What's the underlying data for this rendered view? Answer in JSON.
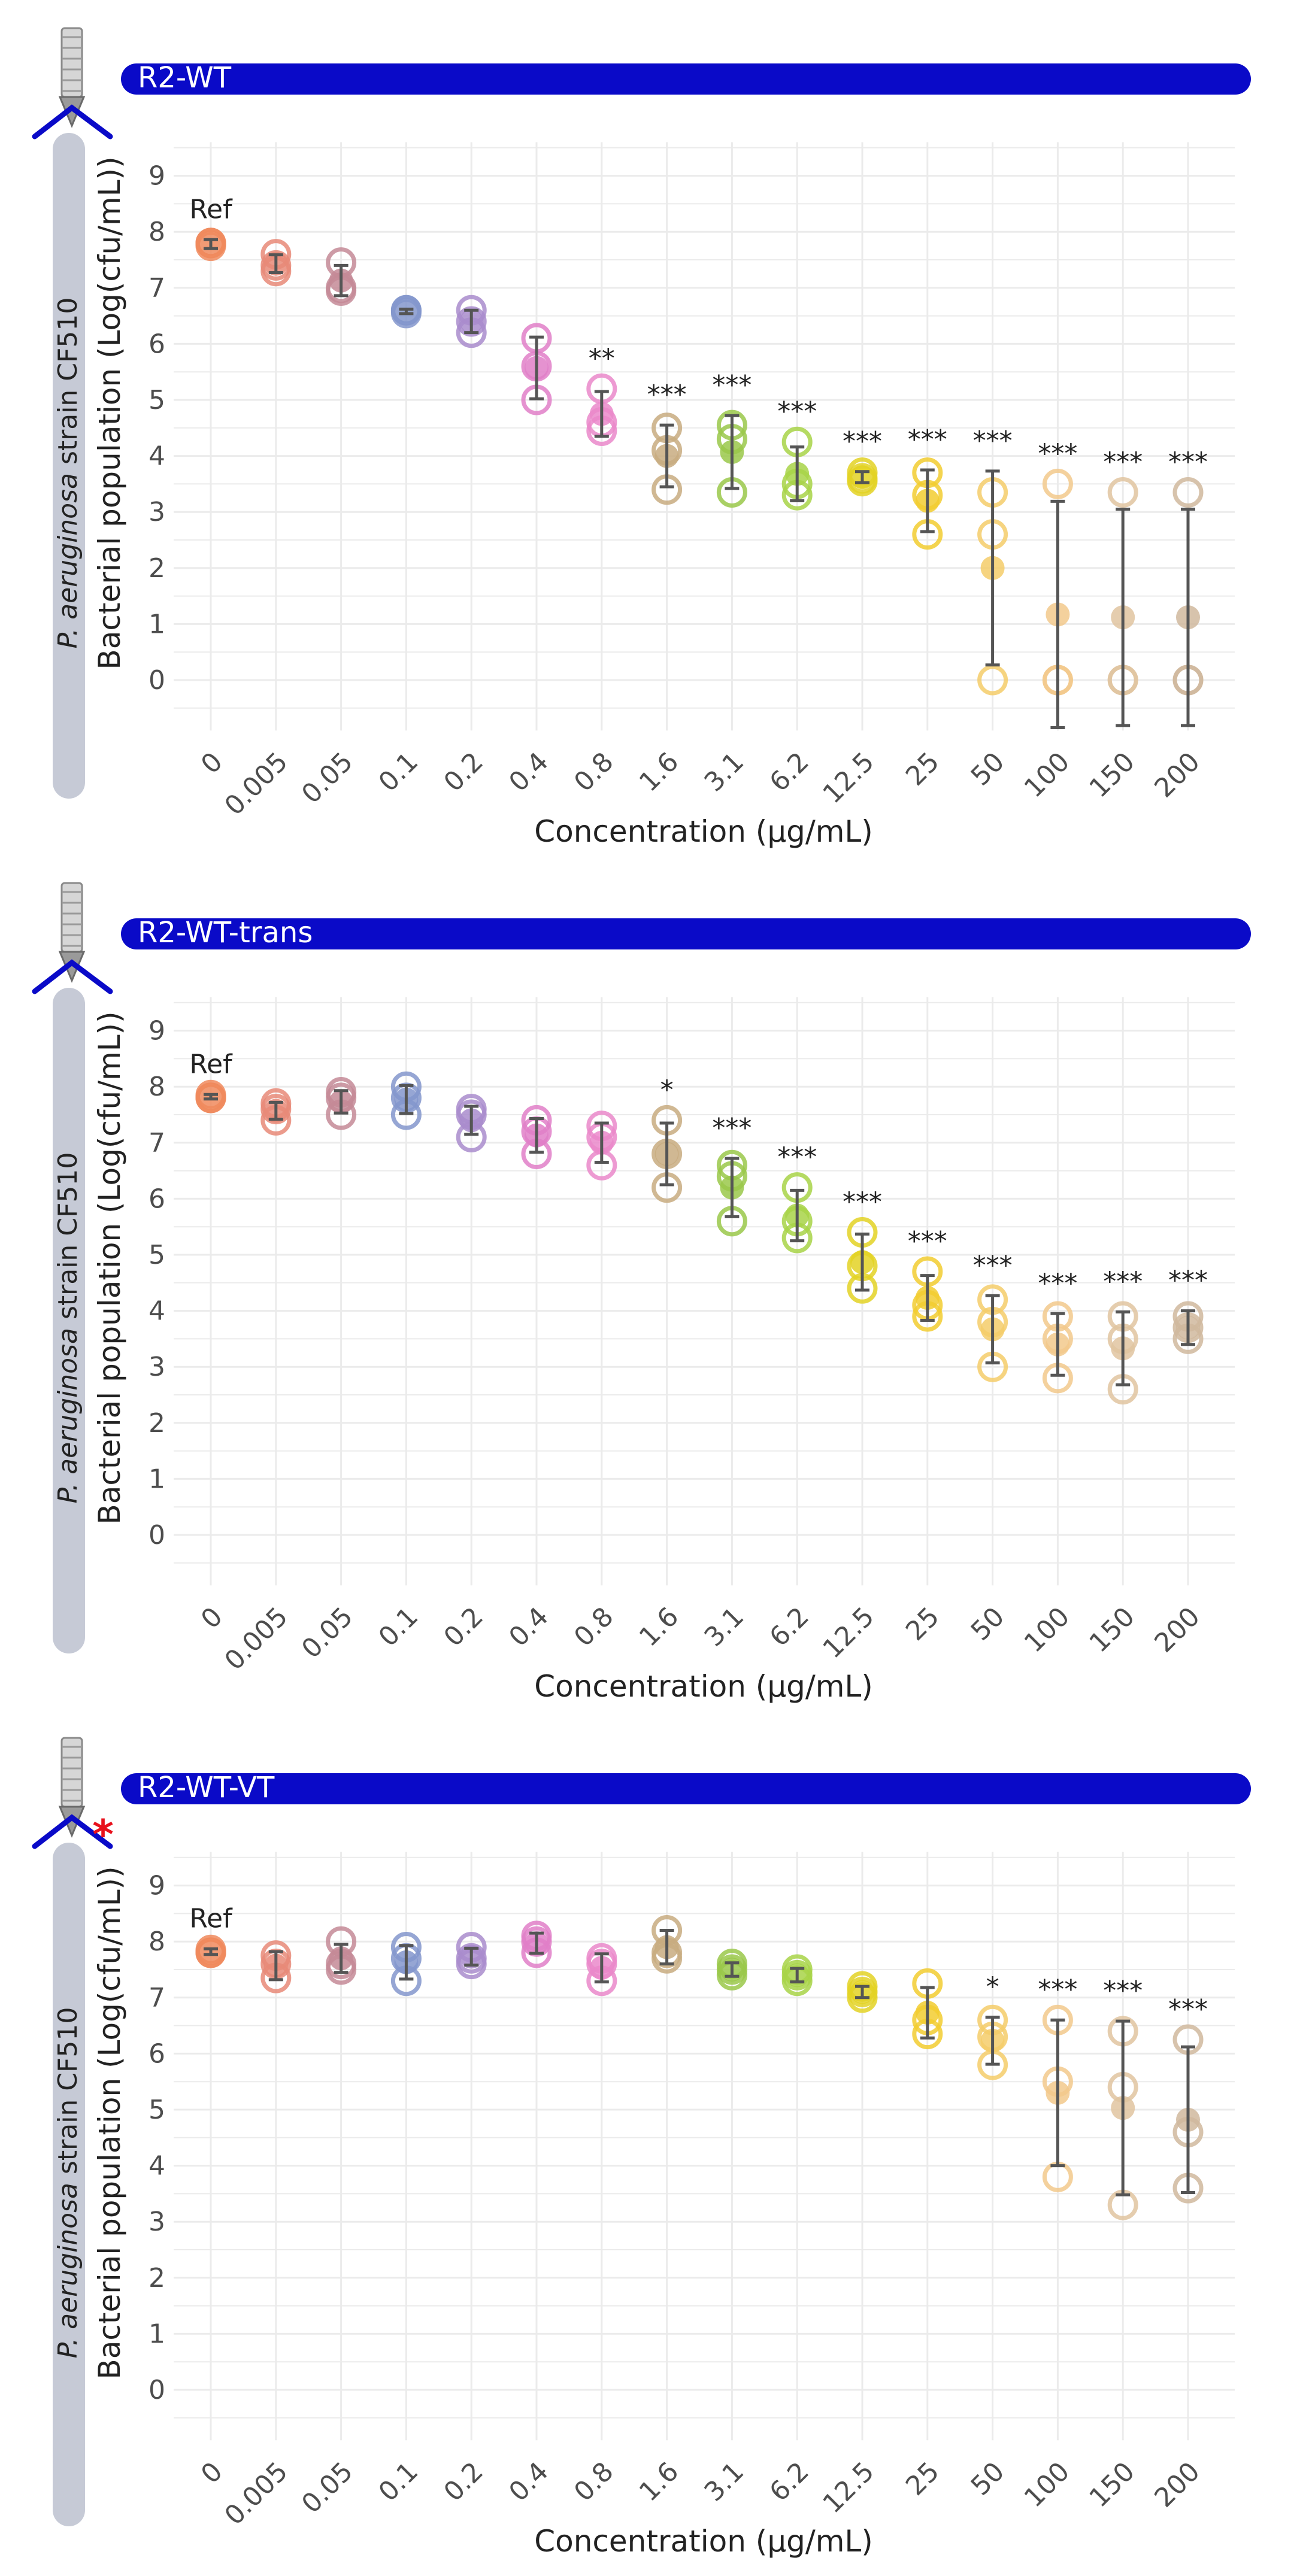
{
  "chart_data": [
    {
      "type": "scatter",
      "title": "R2-WT",
      "has_mutation_marker": false,
      "categories": [
        "0",
        "0.005",
        "0.05",
        "0.1",
        "0.2",
        "0.4",
        "0.8",
        "1.6",
        "3.1",
        "6.2",
        "12.5",
        "25",
        "50",
        "100",
        "150",
        "200"
      ],
      "xlabel": "Concentration (µg/mL)",
      "ylabel_italic": "P. aeruginosa",
      "ylabel_rest": " strain CF510",
      "ylabel2": "Bacterial population (Log(cfu/mL))",
      "ylim": [
        -0.9,
        9.6
      ],
      "yticks": [
        0,
        1,
        2,
        3,
        4,
        5,
        6,
        7,
        8,
        9
      ],
      "replicates": [
        [
          7.8,
          7.8,
          7.75
        ],
        [
          7.6,
          7.4,
          7.3
        ],
        [
          7.45,
          7.0,
          6.95
        ],
        [
          6.6,
          6.6,
          6.55
        ],
        [
          6.6,
          6.4,
          6.2
        ],
        [
          6.1,
          5.6,
          5.0
        ],
        [
          5.2,
          4.6,
          4.45
        ],
        [
          4.5,
          4.1,
          3.4
        ],
        [
          4.55,
          4.3,
          3.35
        ],
        [
          4.25,
          3.5,
          3.3
        ],
        [
          3.7,
          3.6,
          3.55
        ],
        [
          3.7,
          3.3,
          2.6
        ],
        [
          3.35,
          2.6,
          0.0
        ],
        [
          3.5,
          0.0,
          0.0
        ],
        [
          3.35,
          0.0,
          0.0
        ],
        [
          3.35,
          0.0,
          0.0
        ]
      ],
      "means": [
        7.78,
        7.43,
        7.13,
        6.58,
        6.4,
        5.57,
        4.75,
        4.0,
        4.07,
        3.68,
        3.62,
        3.2,
        2.0,
        1.17,
        1.12,
        1.12
      ],
      "sd": [
        0.08,
        0.16,
        0.27,
        0.04,
        0.2,
        0.55,
        0.4,
        0.55,
        0.65,
        0.48,
        0.1,
        0.55,
        1.73,
        2.02,
        1.93,
        1.93
      ],
      "labels": [
        "Ref",
        "",
        "",
        "",
        "",
        "",
        "**",
        "***",
        "***",
        "***",
        "***",
        "***",
        "***",
        "***",
        "***",
        "***"
      ]
    },
    {
      "type": "scatter",
      "title": "R2-WT-trans",
      "has_mutation_marker": false,
      "categories": [
        "0",
        "0.005",
        "0.05",
        "0.1",
        "0.2",
        "0.4",
        "0.8",
        "1.6",
        "3.1",
        "6.2",
        "12.5",
        "25",
        "50",
        "100",
        "150",
        "200"
      ],
      "xlabel": "Concentration (µg/mL)",
      "ylabel_italic": "P. aeruginosa",
      "ylabel_rest": " strain CF510",
      "ylabel2": "Bacterial population (Log(cfu/mL))",
      "ylim": [
        -0.9,
        9.6
      ],
      "yticks": [
        0,
        1,
        2,
        3,
        4,
        5,
        6,
        7,
        8,
        9
      ],
      "replicates": [
        [
          7.85,
          7.8,
          7.8
        ],
        [
          7.7,
          7.6,
          7.4
        ],
        [
          7.9,
          7.8,
          7.5
        ],
        [
          8.0,
          7.8,
          7.5
        ],
        [
          7.6,
          7.5,
          7.1
        ],
        [
          7.4,
          7.2,
          6.8
        ],
        [
          7.3,
          7.1,
          6.6
        ],
        [
          7.4,
          6.8,
          6.2
        ],
        [
          6.6,
          6.4,
          5.6
        ],
        [
          6.2,
          5.6,
          5.3
        ],
        [
          5.4,
          4.8,
          4.4
        ],
        [
          4.7,
          4.1,
          3.9
        ],
        [
          4.2,
          3.8,
          3.0
        ],
        [
          3.9,
          3.5,
          2.8
        ],
        [
          3.9,
          3.5,
          2.6
        ],
        [
          3.9,
          3.7,
          3.5
        ]
      ],
      "means": [
        7.82,
        7.57,
        7.73,
        7.77,
        7.4,
        7.13,
        7.0,
        6.8,
        6.2,
        5.7,
        4.87,
        4.23,
        3.67,
        3.4,
        3.33,
        3.7
      ],
      "sd": [
        0.04,
        0.15,
        0.2,
        0.25,
        0.25,
        0.3,
        0.35,
        0.55,
        0.52,
        0.45,
        0.5,
        0.4,
        0.6,
        0.55,
        0.65,
        0.3
      ],
      "labels": [
        "Ref",
        "",
        "",
        "",
        "",
        "",
        "",
        "*",
        "***",
        "***",
        "***",
        "***",
        "***",
        "***",
        "***",
        "***"
      ]
    },
    {
      "type": "scatter",
      "title": "R2-WT-VT",
      "has_mutation_marker": true,
      "categories": [
        "0",
        "0.005",
        "0.05",
        "0.1",
        "0.2",
        "0.4",
        "0.8",
        "1.6",
        "3.1",
        "6.2",
        "12.5",
        "25",
        "50",
        "100",
        "150",
        "200"
      ],
      "xlabel": "Concentration (µg/mL)",
      "ylabel_italic": "P. aeruginosa",
      "ylabel_rest": " strain CF510",
      "ylabel2": "Bacterial population (Log(cfu/mL))",
      "ylim": [
        -0.9,
        9.6
      ],
      "yticks": [
        0,
        1,
        2,
        3,
        4,
        5,
        6,
        7,
        8,
        9
      ],
      "replicates": [
        [
          7.85,
          7.8,
          7.8
        ],
        [
          7.75,
          7.6,
          7.35
        ],
        [
          8.0,
          7.6,
          7.5
        ],
        [
          7.9,
          7.7,
          7.3
        ],
        [
          7.9,
          7.7,
          7.6
        ],
        [
          8.1,
          8.0,
          7.8
        ],
        [
          7.7,
          7.6,
          7.3
        ],
        [
          8.2,
          7.8,
          7.7
        ],
        [
          7.6,
          7.5,
          7.4
        ],
        [
          7.5,
          7.4,
          7.3
        ],
        [
          7.2,
          7.1,
          7.0
        ],
        [
          7.25,
          6.6,
          6.35
        ],
        [
          6.6,
          6.3,
          5.8
        ],
        [
          6.6,
          5.5,
          3.8
        ],
        [
          6.4,
          5.4,
          3.3
        ],
        [
          6.25,
          4.6,
          3.6
        ]
      ],
      "means": [
        7.82,
        7.57,
        7.7,
        7.63,
        7.73,
        7.97,
        7.53,
        7.9,
        7.5,
        7.4,
        7.1,
        6.73,
        6.23,
        5.3,
        5.03,
        4.82
      ],
      "sd": [
        0.05,
        0.25,
        0.25,
        0.3,
        0.15,
        0.18,
        0.25,
        0.3,
        0.12,
        0.12,
        0.1,
        0.45,
        0.42,
        1.3,
        1.55,
        1.3
      ],
      "labels": [
        "Ref",
        "",
        "",
        "",
        "",
        "",
        "",
        "",
        "",
        "",
        "",
        "",
        "*",
        "***",
        "***",
        "***"
      ]
    }
  ],
  "colors": {
    "banner": "#0a0ac8",
    "banner_text": "#ffffff",
    "sidebar": "#c6cad6",
    "grid": "#ebebeb",
    "errorbar": "#555555",
    "text": "#222222",
    "tick_text": "#4d4d4d",
    "mutation_star": "#e8111c",
    "series": [
      "#f08a5d",
      "#e88a78",
      "#c48a96",
      "#8496cc",
      "#a98ccc",
      "#e07fc8",
      "#ea88ca",
      "#c8ab80",
      "#9ac84a",
      "#a8d448",
      "#e3d225",
      "#f2cc30",
      "#f4cc6a",
      "#f2c98c",
      "#e0c4a0",
      "#d0b89e"
    ]
  }
}
